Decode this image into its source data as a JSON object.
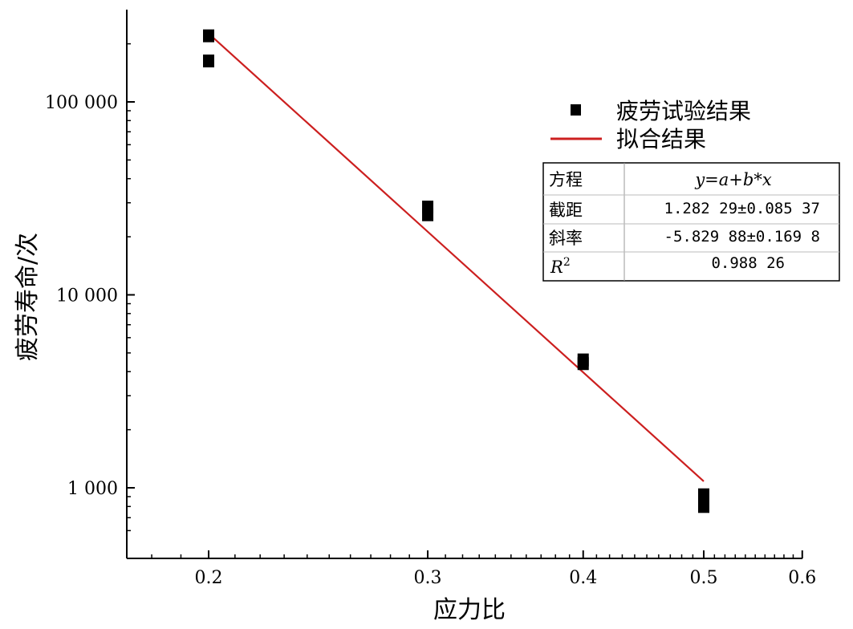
{
  "chart_data": {
    "type": "scatter",
    "xlabel": "应力比",
    "ylabel": "疲劳寿命/次",
    "x_scale": "log",
    "y_scale": "log",
    "xlim": [
      0.17,
      0.6
    ],
    "ylim": [
      500,
      270000
    ],
    "x_ticks": [
      0.2,
      0.3,
      0.4,
      0.5,
      0.6
    ],
    "x_tick_labels": [
      "0.2",
      "0.3",
      "0.4",
      "0.5",
      "0.6"
    ],
    "y_ticks": [
      1000,
      10000,
      100000
    ],
    "y_tick_labels": [
      "1 000",
      "10 000",
      "100 000"
    ],
    "series": [
      {
        "name": "疲劳试验结果",
        "kind": "scatter",
        "color": "#000000",
        "points": [
          [
            0.2,
            220000
          ],
          [
            0.2,
            163000
          ],
          [
            0.3,
            28500
          ],
          [
            0.3,
            26000
          ],
          [
            0.4,
            4600
          ],
          [
            0.4,
            4400
          ],
          [
            0.5,
            920
          ],
          [
            0.5,
            800
          ]
        ]
      },
      {
        "name": "拟合结果",
        "kind": "line",
        "color": "#cc1f1f",
        "points": [
          [
            0.2,
            226000
          ],
          [
            0.5,
            1080
          ]
        ]
      }
    ],
    "legend_position": "top-right",
    "fit_table": {
      "rows": [
        {
          "label": "方程",
          "value": "y=a+b*x",
          "italic": true
        },
        {
          "label": "截距",
          "value": "1.282 29±0.085 37"
        },
        {
          "label": "斜率",
          "value": "-5.829 88±0.169 8"
        },
        {
          "label": "R",
          "label_sup": "2",
          "value": "0.988 26"
        }
      ]
    }
  }
}
